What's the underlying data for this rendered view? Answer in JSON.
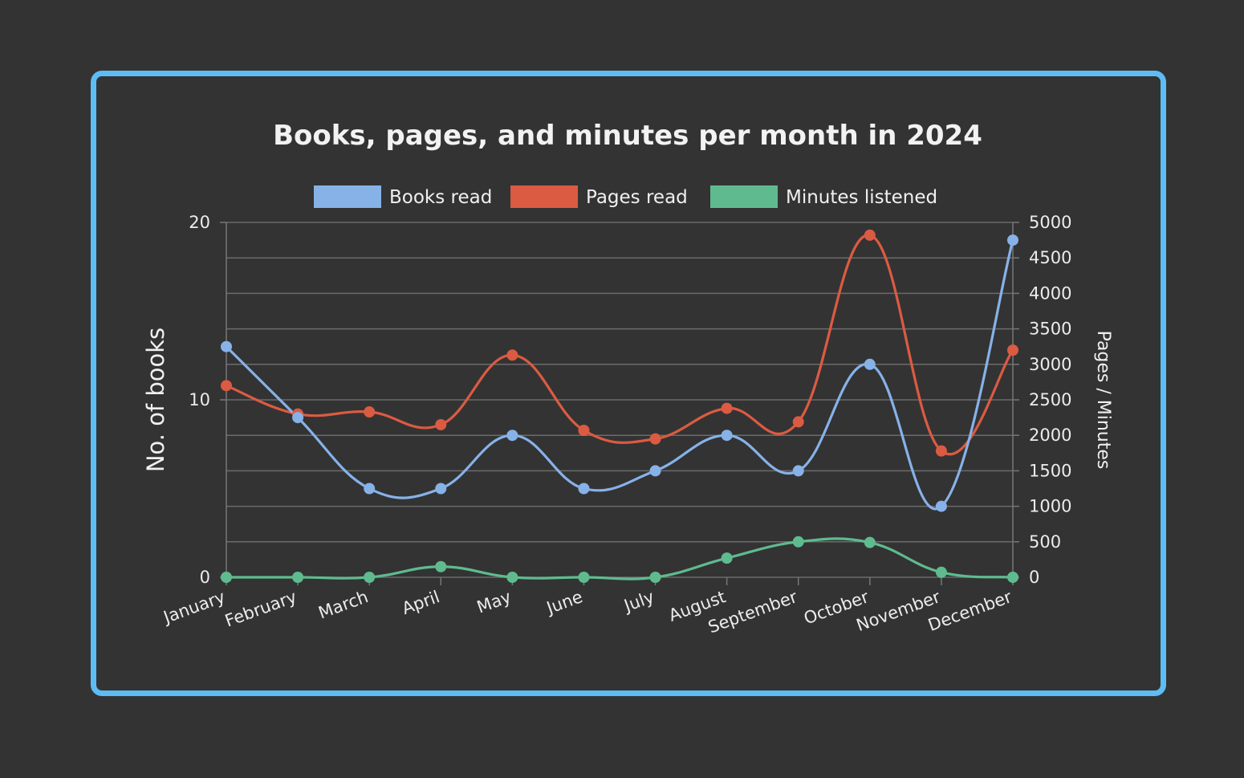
{
  "chart_data": {
    "type": "line",
    "title": "Books, pages, and minutes per month in 2024",
    "categories": [
      "January",
      "February",
      "March",
      "April",
      "May",
      "June",
      "July",
      "August",
      "September",
      "October",
      "November",
      "December"
    ],
    "series": [
      {
        "name": "Books read",
        "axis": "left",
        "color": "#86b2e8",
        "values": [
          13,
          9,
          5,
          5,
          8,
          5,
          6,
          8,
          6,
          12,
          4,
          19
        ]
      },
      {
        "name": "Pages read",
        "axis": "right",
        "color": "#db5b42",
        "values": [
          2700,
          2300,
          2330,
          2150,
          3130,
          2070,
          1950,
          2380,
          2190,
          4820,
          1780,
          3200
        ]
      },
      {
        "name": "Minutes listened",
        "axis": "right",
        "color": "#5fbb8f",
        "values": [
          0,
          0,
          0,
          150,
          0,
          0,
          0,
          270,
          500,
          490,
          70,
          0
        ]
      }
    ],
    "ylabel": "No. of books",
    "ylim": [
      0,
      20
    ],
    "yticks": [
      0,
      10,
      20
    ],
    "y2label": "Pages / Minutes",
    "y2lim": [
      0,
      5000
    ],
    "y2ticks": [
      0,
      500,
      1000,
      1500,
      2000,
      2500,
      3000,
      3500,
      4000,
      4500,
      5000
    ],
    "grid": true,
    "legend": "top"
  }
}
